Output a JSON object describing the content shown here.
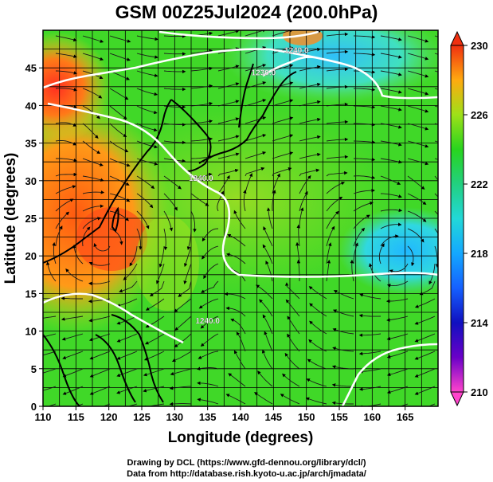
{
  "title": "GSM 00Z25Jul2024 (200.0hPa)",
  "xlabel": "Longitude (degrees)",
  "ylabel": "Latitude  (degrees)",
  "credits": [
    "Drawing by DCL (https://www.gfd-dennou.org/library/dcl/)",
    "Data from http://database.rish.kyoto-u.ac.jp/arch/jmadata/"
  ],
  "map": {
    "lon_range": [
      110,
      170
    ],
    "lat_range": [
      0,
      50
    ],
    "lon_ticks": [
      110,
      115,
      120,
      125,
      130,
      135,
      140,
      145,
      150,
      155,
      160,
      165
    ],
    "lat_ticks": [
      0,
      5,
      10,
      15,
      20,
      25,
      30,
      35,
      40,
      45
    ],
    "grid": true,
    "grid_spacing_deg": 2.5
  },
  "colorbar": {
    "ticks": [
      "230",
      "226",
      "222",
      "218",
      "214",
      "210"
    ],
    "range": [
      210,
      230
    ],
    "placement": "right"
  },
  "contour_labels": [
    {
      "text": "1240.0",
      "lon": 148.5,
      "lat": 47.0
    },
    {
      "text": "1230.0",
      "lon": 143.5,
      "lat": 44.0
    },
    {
      "text": "1240.0",
      "lon": 134.0,
      "lat": 30.0
    },
    {
      "text": "1240.0",
      "lon": 135.0,
      "lat": 11.0
    }
  ]
}
